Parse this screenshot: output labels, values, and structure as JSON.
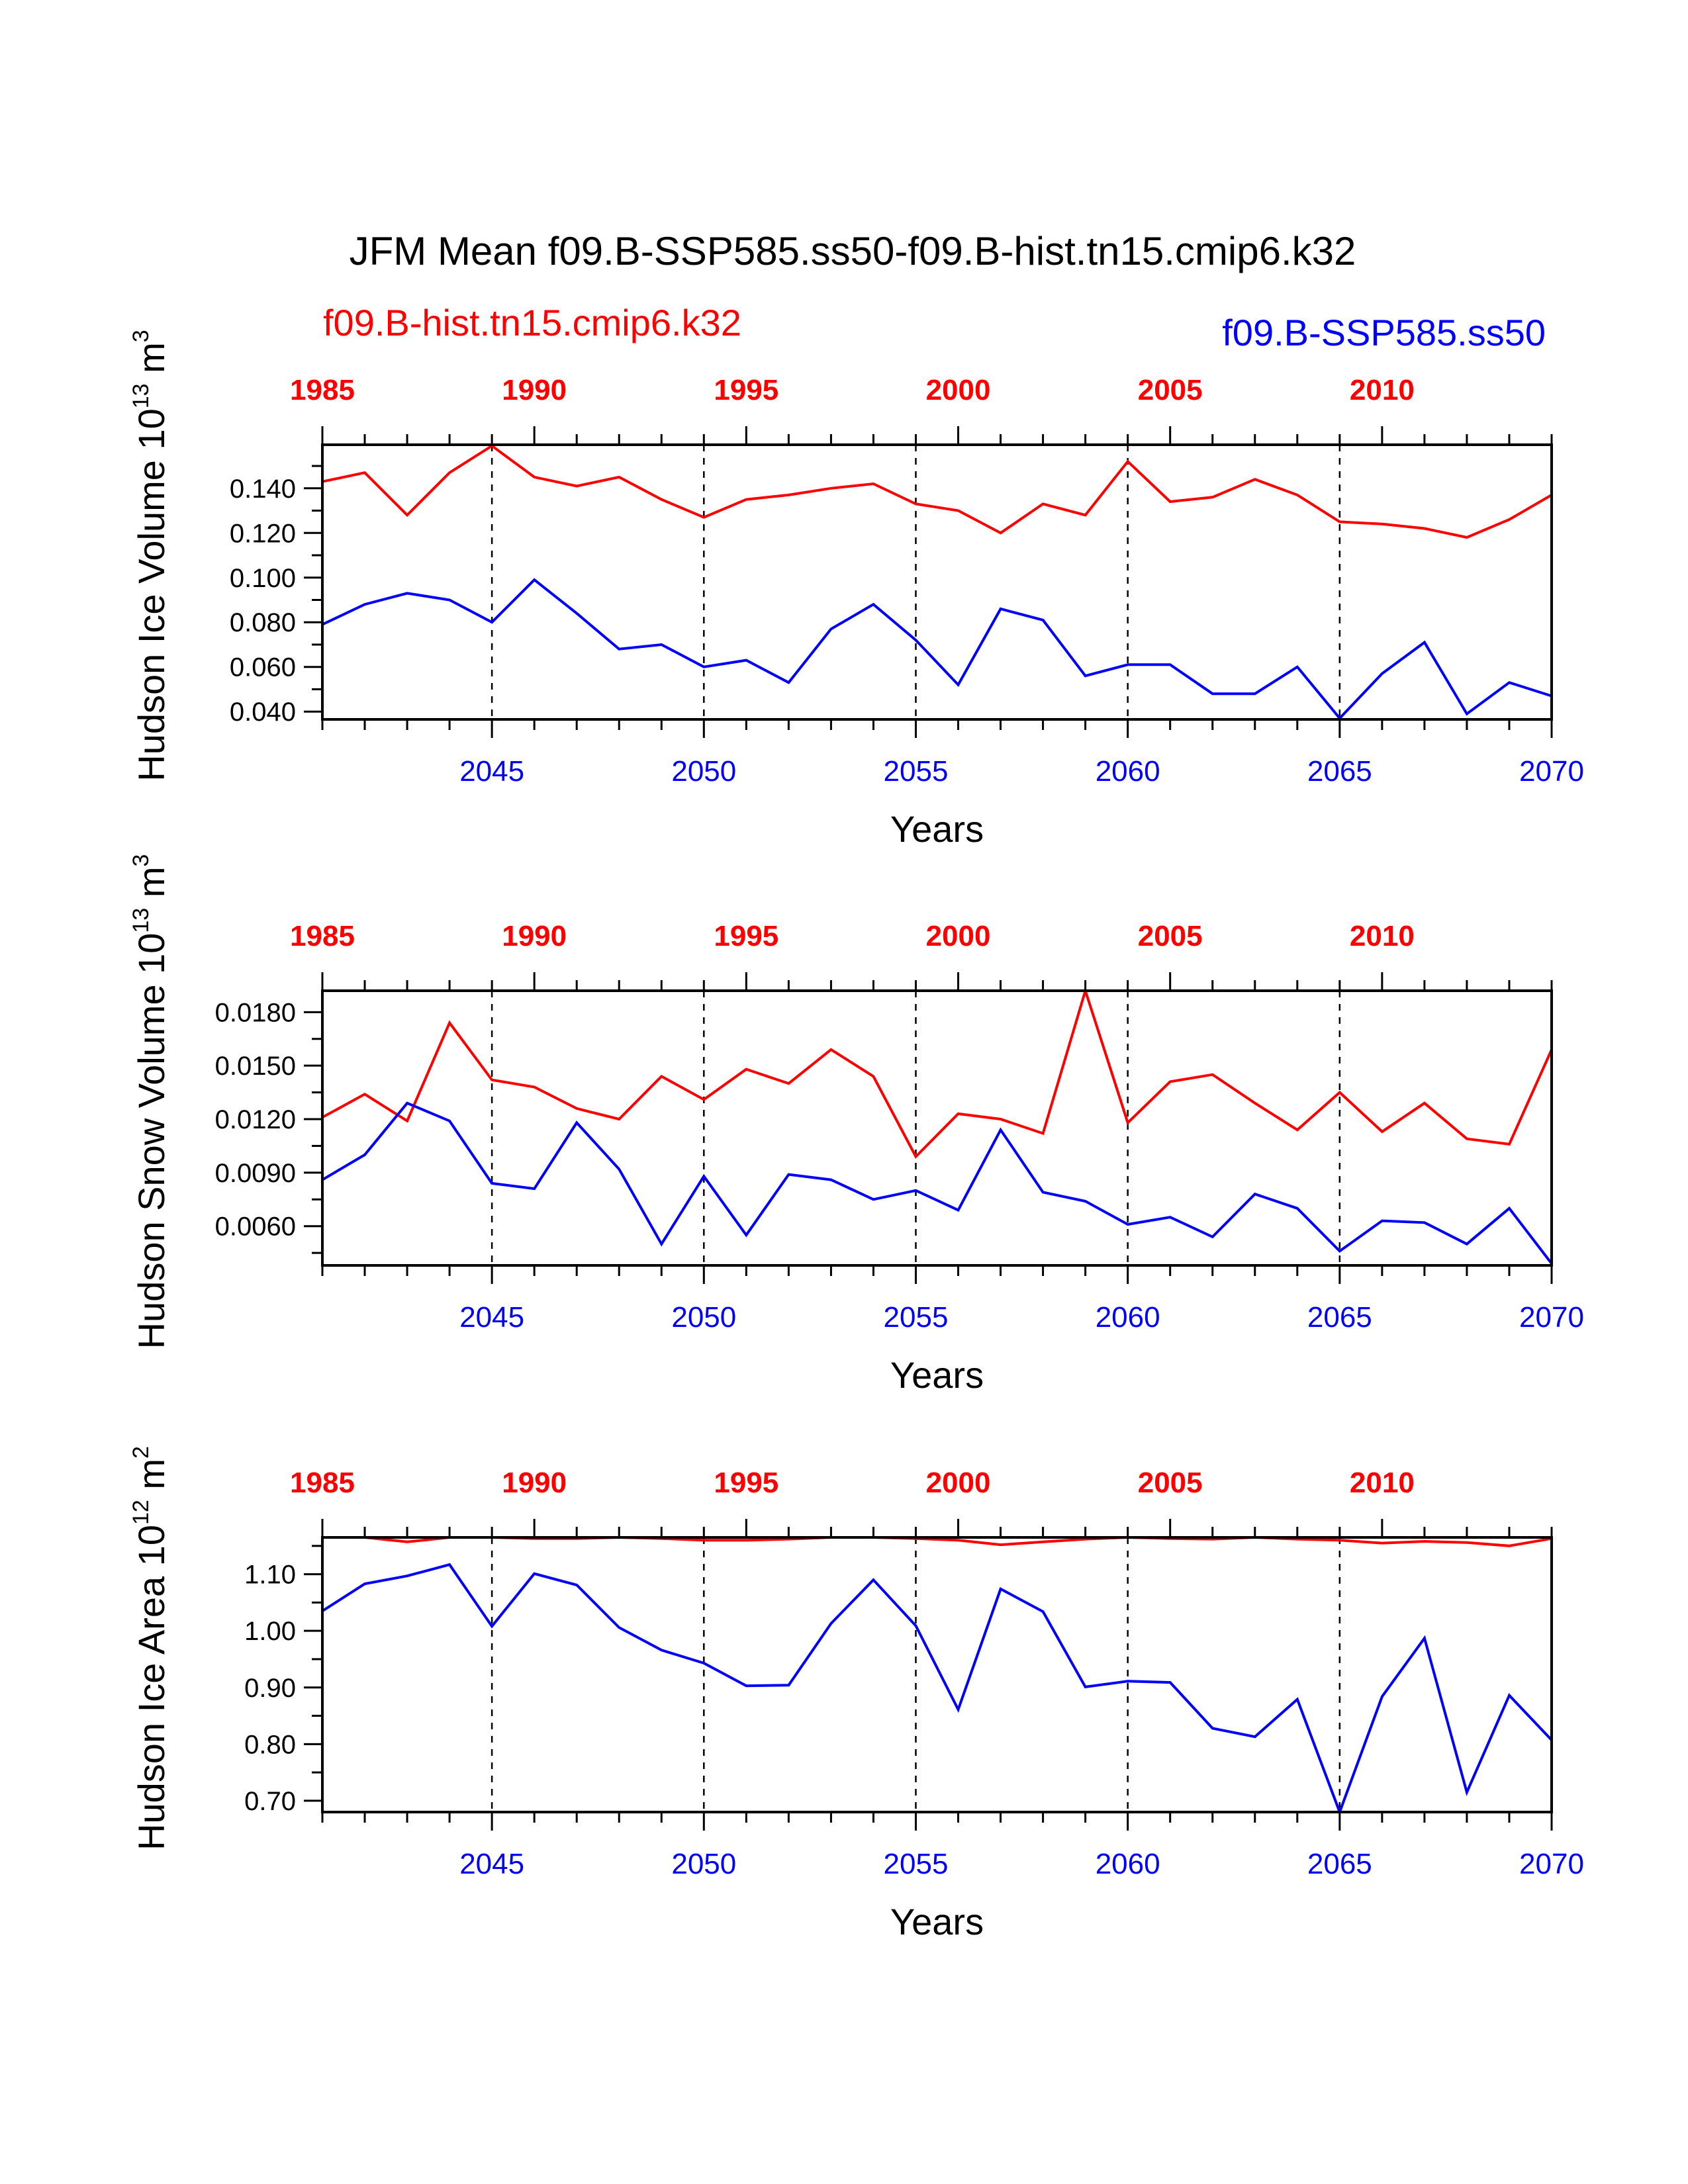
{
  "title": "JFM Mean f09.B-SSP585.ss50-f09.B-hist.tn15.cmip6.k32",
  "legend": {
    "left": "f09.B-hist.tn15.cmip6.k32",
    "right": "f09.B-SSP585.ss50"
  },
  "colors": {
    "hist": "#ff0000",
    "ssp": "#0000ff",
    "axis": "#000000"
  },
  "chart_data": [
    {
      "type": "line",
      "ylabel_text": "Hudson Ice Volume 10",
      "ylabel_exp": "13",
      "ylabel_unit": " m",
      "ylabel_unit_exp": "3",
      "xlabel": "Years",
      "ylim": [
        0.0365,
        0.1595
      ],
      "yticks": [
        0.04,
        0.06,
        0.08,
        0.1,
        0.12,
        0.14
      ],
      "ytick_labels": [
        "0.040",
        "0.060",
        "0.080",
        "0.100",
        "0.120",
        "0.140"
      ],
      "x_bottom_range": [
        2041,
        2070
      ],
      "x_bottom_ticks": [
        2045,
        2050,
        2055,
        2060,
        2065,
        2070
      ],
      "x_bottom_tick_labels": [
        "2045",
        "2050",
        "2055",
        "2060",
        "2065",
        "2070"
      ],
      "x_top_range": [
        1985,
        2014
      ],
      "x_top_ticks": [
        1985,
        1990,
        1995,
        2000,
        2005,
        2010
      ],
      "x_top_tick_labels": [
        "1985",
        "1990",
        "1995",
        "2000",
        "2005",
        "2010"
      ],
      "reference_lines_x": [
        2045,
        2050,
        2055,
        2060,
        2065
      ],
      "series": [
        {
          "color": "#ff0000",
          "axis": "top",
          "x": [
            1985,
            1986,
            1987,
            1988,
            1989,
            1990,
            1991,
            1992,
            1993,
            1994,
            1995,
            1996,
            1997,
            1998,
            1999,
            2000,
            2001,
            2002,
            2003,
            2004,
            2005,
            2006,
            2007,
            2008,
            2009,
            2010,
            2011,
            2012,
            2013,
            2014
          ],
          "values": [
            0.143,
            0.147,
            0.128,
            0.147,
            0.159,
            0.145,
            0.141,
            0.145,
            0.135,
            0.127,
            0.135,
            0.137,
            0.14,
            0.142,
            0.133,
            0.13,
            0.12,
            0.133,
            0.128,
            0.152,
            0.134,
            0.136,
            0.144,
            0.137,
            0.125,
            0.124,
            0.122,
            0.118,
            0.126,
            0.137
          ]
        },
        {
          "color": "#0000ff",
          "axis": "bottom",
          "x": [
            2041,
            2042,
            2043,
            2044,
            2045,
            2046,
            2047,
            2048,
            2049,
            2050,
            2051,
            2052,
            2053,
            2054,
            2055,
            2056,
            2057,
            2058,
            2059,
            2060,
            2061,
            2062,
            2063,
            2064,
            2065,
            2066,
            2067,
            2068,
            2069,
            2070
          ],
          "values": [
            0.079,
            0.088,
            0.093,
            0.09,
            0.08,
            0.099,
            0.084,
            0.068,
            0.07,
            0.06,
            0.063,
            0.053,
            0.077,
            0.088,
            0.072,
            0.052,
            0.086,
            0.081,
            0.056,
            0.061,
            0.061,
            0.048,
            0.048,
            0.06,
            0.037,
            0.057,
            0.071,
            0.039,
            0.053,
            0.047
          ]
        }
      ]
    },
    {
      "type": "line",
      "ylabel_text": "Hudson Snow Volume 10",
      "ylabel_exp": "13",
      "ylabel_unit": " m",
      "ylabel_unit_exp": "3",
      "xlabel": "Years",
      "ylim": [
        0.0038,
        0.0192
      ],
      "yticks": [
        0.006,
        0.009,
        0.012,
        0.015,
        0.018
      ],
      "ytick_labels": [
        "0.0060",
        "0.0090",
        "0.0120",
        "0.0150",
        "0.0180"
      ],
      "x_bottom_range": [
        2041,
        2070
      ],
      "x_bottom_ticks": [
        2045,
        2050,
        2055,
        2060,
        2065,
        2070
      ],
      "x_bottom_tick_labels": [
        "2045",
        "2050",
        "2055",
        "2060",
        "2065",
        "2070"
      ],
      "x_top_range": [
        1985,
        2014
      ],
      "x_top_ticks": [
        1985,
        1990,
        1995,
        2000,
        2005,
        2010
      ],
      "x_top_tick_labels": [
        "1985",
        "1990",
        "1995",
        "2000",
        "2005",
        "2010"
      ],
      "reference_lines_x": [
        2045,
        2050,
        2055,
        2060,
        2065
      ],
      "series": [
        {
          "color": "#ff0000",
          "axis": "top",
          "x": [
            1985,
            1986,
            1987,
            1988,
            1989,
            1990,
            1991,
            1992,
            1993,
            1994,
            1995,
            1996,
            1997,
            1998,
            1999,
            2000,
            2001,
            2002,
            2003,
            2004,
            2005,
            2006,
            2007,
            2008,
            2009,
            2010,
            2011,
            2012,
            2013,
            2014
          ],
          "values": [
            0.0121,
            0.0134,
            0.0119,
            0.0174,
            0.0142,
            0.0138,
            0.0126,
            0.012,
            0.0144,
            0.0131,
            0.0148,
            0.014,
            0.0159,
            0.0144,
            0.0099,
            0.0123,
            0.012,
            0.0112,
            0.0192,
            0.0118,
            0.0141,
            0.0145,
            0.0129,
            0.0114,
            0.0135,
            0.0113,
            0.0129,
            0.0109,
            0.0106,
            0.0159
          ]
        },
        {
          "color": "#0000ff",
          "axis": "bottom",
          "x": [
            2041,
            2042,
            2043,
            2044,
            2045,
            2046,
            2047,
            2048,
            2049,
            2050,
            2051,
            2052,
            2053,
            2054,
            2055,
            2056,
            2057,
            2058,
            2059,
            2060,
            2061,
            2062,
            2063,
            2064,
            2065,
            2066,
            2067,
            2068,
            2069,
            2070
          ],
          "values": [
            0.0086,
            0.01,
            0.0129,
            0.0119,
            0.0084,
            0.0081,
            0.0118,
            0.0092,
            0.005,
            0.0088,
            0.0055,
            0.0089,
            0.0086,
            0.0075,
            0.008,
            0.0069,
            0.0114,
            0.0079,
            0.0074,
            0.0061,
            0.0065,
            0.0054,
            0.0078,
            0.007,
            0.0046,
            0.0063,
            0.0062,
            0.005,
            0.007,
            0.0039
          ]
        }
      ]
    },
    {
      "type": "line",
      "ylabel_text": "Hudson Ice Area 10",
      "ylabel_exp": "12",
      "ylabel_unit": " m",
      "ylabel_unit_exp": "2",
      "xlabel": "Years",
      "ylim": [
        0.68,
        1.165
      ],
      "yticks": [
        0.7,
        0.8,
        0.9,
        1.0,
        1.1
      ],
      "ytick_labels": [
        "0.70",
        "0.80",
        "0.90",
        "1.00",
        "1.10"
      ],
      "x_bottom_range": [
        2041,
        2070
      ],
      "x_bottom_ticks": [
        2045,
        2050,
        2055,
        2060,
        2065,
        2070
      ],
      "x_bottom_tick_labels": [
        "2045",
        "2050",
        "2055",
        "2060",
        "2065",
        "2070"
      ],
      "x_top_range": [
        1985,
        2014
      ],
      "x_top_ticks": [
        1985,
        1990,
        1995,
        2000,
        2005,
        2010
      ],
      "x_top_tick_labels": [
        "1985",
        "1990",
        "1995",
        "2000",
        "2005",
        "2010"
      ],
      "reference_lines_x": [
        2045,
        2050,
        2055,
        2060,
        2065
      ],
      "series": [
        {
          "color": "#ff0000",
          "axis": "top",
          "x": [
            1985,
            1986,
            1987,
            1988,
            1989,
            1990,
            1991,
            1992,
            1993,
            1994,
            1995,
            1996,
            1997,
            1998,
            1999,
            2000,
            2001,
            2002,
            2003,
            2004,
            2005,
            2006,
            2007,
            2008,
            2009,
            2010,
            2011,
            2012,
            2013,
            2014
          ],
          "values": [
            1.165,
            1.165,
            1.157,
            1.165,
            1.165,
            1.163,
            1.163,
            1.165,
            1.163,
            1.16,
            1.16,
            1.162,
            1.165,
            1.165,
            1.163,
            1.16,
            1.152,
            1.157,
            1.162,
            1.165,
            1.163,
            1.162,
            1.165,
            1.162,
            1.16,
            1.155,
            1.158,
            1.156,
            1.15,
            1.163
          ]
        },
        {
          "color": "#0000ff",
          "axis": "bottom",
          "x": [
            2041,
            2042,
            2043,
            2044,
            2045,
            2046,
            2047,
            2048,
            2049,
            2050,
            2051,
            2052,
            2053,
            2054,
            2055,
            2056,
            2057,
            2058,
            2059,
            2060,
            2061,
            2062,
            2063,
            2064,
            2065,
            2066,
            2067,
            2068,
            2069,
            2070
          ],
          "values": [
            1.035,
            1.083,
            1.097,
            1.117,
            1.008,
            1.101,
            1.081,
            1.006,
            0.966,
            0.943,
            0.903,
            0.904,
            1.013,
            1.09,
            1.009,
            0.861,
            1.074,
            1.034,
            0.901,
            0.911,
            0.909,
            0.828,
            0.813,
            0.879,
            0.68,
            0.884,
            0.987,
            0.715,
            0.886,
            0.807
          ]
        }
      ]
    }
  ]
}
